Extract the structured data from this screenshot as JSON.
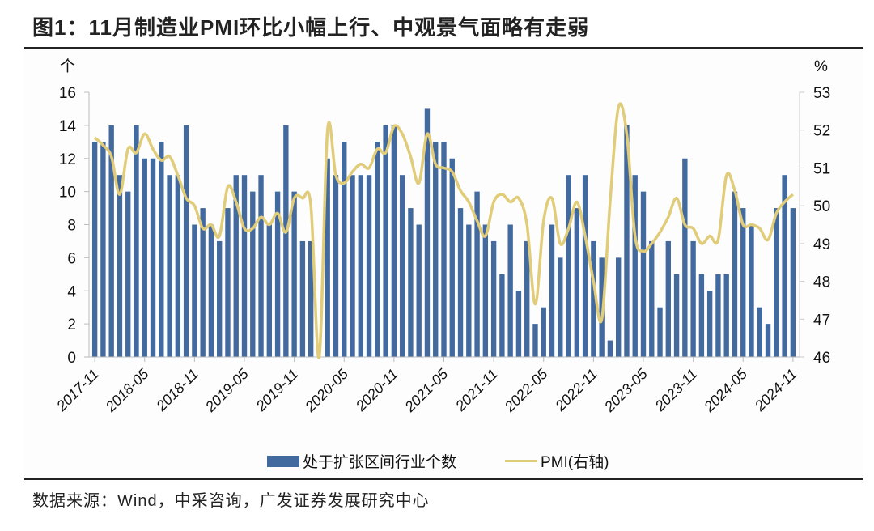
{
  "title": "图1：11月制造业PMI环比小幅上行、中观景气面略有走弱",
  "source": "数据来源：Wind，中采咨询，广发证券发展研究中心",
  "colors": {
    "bar": "#436a9f",
    "line": "#e0cc79"
  },
  "chart_data": {
    "type": "bar+line",
    "left_unit": "个",
    "right_unit": "%",
    "ylim_left": [
      0,
      16
    ],
    "ylim_right": [
      46,
      53
    ],
    "left_ticks": [
      "0",
      "2",
      "4",
      "6",
      "8",
      "10",
      "12",
      "14",
      "16"
    ],
    "right_ticks": [
      "46",
      "47",
      "48",
      "49",
      "50",
      "51",
      "52",
      "53"
    ],
    "x_tick_labels": [
      "2017-11",
      "2018-05",
      "2018-11",
      "2019-05",
      "2019-11",
      "2020-05",
      "2020-11",
      "2021-05",
      "2021-11",
      "2022-05",
      "2022-11",
      "2023-05",
      "2023-11",
      "2024-05",
      "2024-11"
    ],
    "legend": [
      "处于扩张区间行业个数",
      "PMI(右轴)"
    ],
    "months": [
      "2017-11",
      "2017-12",
      "2018-01",
      "2018-02",
      "2018-03",
      "2018-04",
      "2018-05",
      "2018-06",
      "2018-07",
      "2018-08",
      "2018-09",
      "2018-10",
      "2018-11",
      "2018-12",
      "2019-01",
      "2019-02",
      "2019-03",
      "2019-04",
      "2019-05",
      "2019-06",
      "2019-07",
      "2019-08",
      "2019-09",
      "2019-10",
      "2019-11",
      "2019-12",
      "2020-01",
      "2020-02",
      "2020-03",
      "2020-04",
      "2020-05",
      "2020-06",
      "2020-07",
      "2020-08",
      "2020-09",
      "2020-10",
      "2020-11",
      "2020-12",
      "2021-01",
      "2021-02",
      "2021-03",
      "2021-04",
      "2021-05",
      "2021-06",
      "2021-07",
      "2021-08",
      "2021-09",
      "2021-10",
      "2021-11",
      "2021-12",
      "2022-01",
      "2022-02",
      "2022-03",
      "2022-04",
      "2022-05",
      "2022-06",
      "2022-07",
      "2022-08",
      "2022-09",
      "2022-10",
      "2022-11",
      "2022-12",
      "2023-01",
      "2023-02",
      "2023-03",
      "2023-04",
      "2023-05",
      "2023-06",
      "2023-07",
      "2023-08",
      "2023-09",
      "2023-10",
      "2023-11",
      "2023-12",
      "2024-01",
      "2024-02",
      "2024-03",
      "2024-04",
      "2024-05",
      "2024-06",
      "2024-07",
      "2024-08",
      "2024-09",
      "2024-10",
      "2024-11"
    ],
    "series": [
      {
        "name": "处于扩张区间行业个数",
        "axis": "left",
        "type": "bar",
        "values": [
          13,
          13,
          14,
          11,
          10,
          14,
          12,
          12,
          13,
          11,
          11,
          14,
          8,
          9,
          8,
          7,
          9,
          11,
          11,
          10,
          11,
          8,
          10,
          14,
          10,
          7,
          7,
          0,
          12,
          11,
          13,
          11,
          11,
          11,
          13,
          14,
          14,
          11,
          9,
          8,
          15,
          13,
          13,
          12,
          9,
          8,
          10,
          8,
          7,
          5,
          8,
          4,
          7,
          2,
          3,
          8,
          6,
          11,
          9,
          11,
          7,
          6,
          1,
          6,
          14,
          11,
          10,
          7,
          3,
          7,
          5,
          12,
          7,
          5,
          4,
          5,
          5,
          10,
          9,
          8,
          3,
          2,
          9,
          11,
          9
        ]
      },
      {
        "name": "PMI(右轴)",
        "axis": "right",
        "type": "line",
        "values": [
          51.8,
          51.6,
          51.3,
          50.3,
          51.5,
          51.4,
          51.9,
          51.5,
          51.2,
          51.3,
          50.8,
          50.2,
          50.0,
          49.4,
          49.5,
          49.2,
          50.5,
          50.1,
          49.4,
          49.4,
          49.7,
          49.5,
          49.8,
          49.3,
          50.2,
          50.2,
          50.0,
          null,
          52.0,
          50.8,
          50.6,
          50.9,
          51.1,
          51.0,
          51.5,
          51.4,
          52.1,
          51.9,
          51.3,
          50.6,
          51.9,
          51.1,
          51.0,
          50.9,
          50.4,
          50.1,
          49.6,
          49.2,
          50.1,
          50.3,
          50.1,
          50.2,
          49.5,
          47.4,
          49.6,
          50.2,
          49.0,
          49.4,
          50.1,
          49.2,
          48.0,
          47.0,
          50.1,
          52.6,
          51.9,
          49.2,
          48.8,
          49.0,
          49.3,
          49.7,
          50.2,
          49.5,
          49.4,
          49.0,
          49.2,
          49.1,
          50.8,
          50.4,
          49.5,
          49.5,
          49.4,
          49.1,
          49.8,
          50.1,
          50.3
        ]
      }
    ]
  }
}
